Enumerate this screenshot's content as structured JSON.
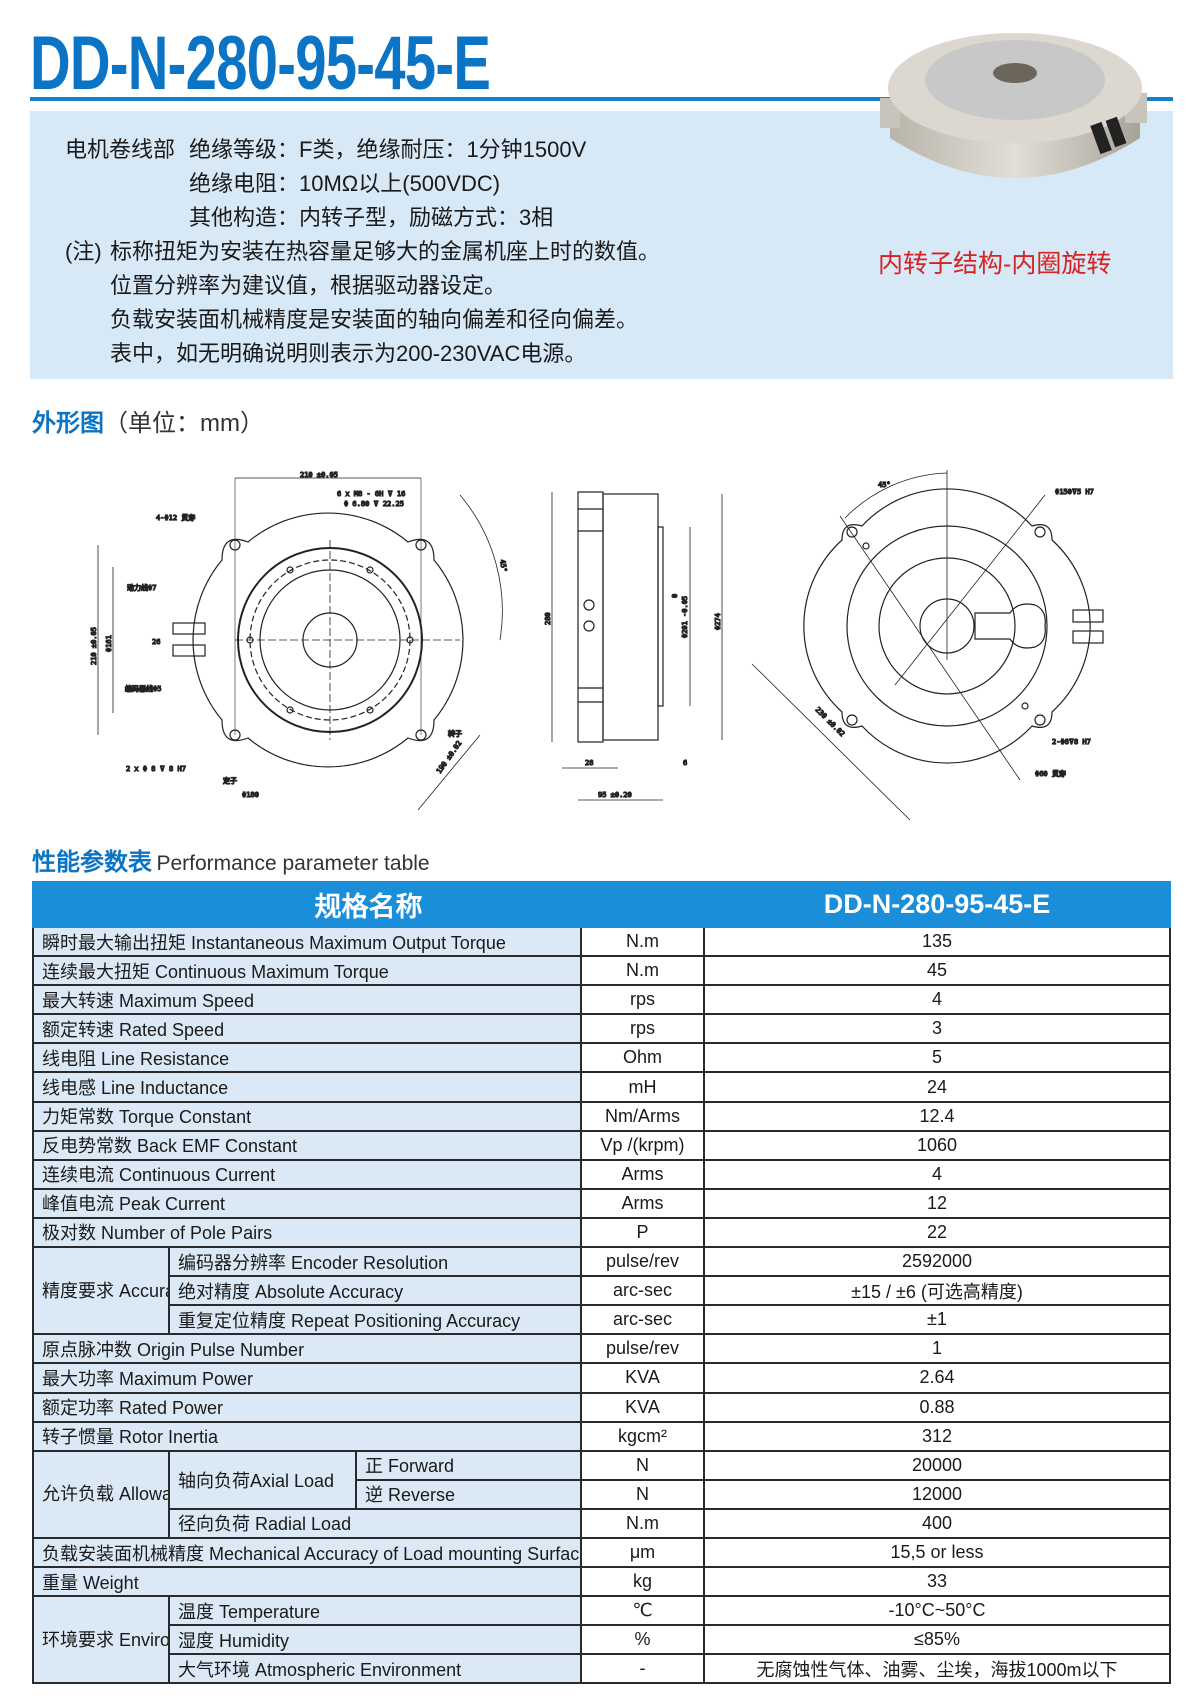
{
  "title": "DD-N-280-95-45-E",
  "info": {
    "winding_label": "电机卷线部",
    "lines": [
      "绝缘等级：F类，绝缘耐压：1分钟1500V",
      "绝缘电阻：10MΩ以上(500VDC)",
      "其他构造：内转子型，励磁方式：3相"
    ],
    "note_label": "(注)",
    "notes": [
      "标称扭矩为安装在热容量足够大的金属机座上时的数值。",
      "位置分辨率为建议值，根据驱动器设定。",
      "负载安装面机械精度是安装面的轴向偏差和径向偏差。",
      "表中，如无明确说明则表示为200-230VAC电源。"
    ],
    "structure_label": "内转子结构-内圈旋转"
  },
  "outline": {
    "heading": "外形图",
    "unit": "（单位：mm）",
    "front_labels": [
      "210 ±0.05",
      "6 x M8 - 6H ⊽ 16",
      "Φ 6.80 ⊽ 22.25",
      "4-Φ12 贯穿",
      "动力线Φ7",
      "26",
      "编码器线Φ5",
      "210 ±0.05",
      "Φ161",
      "2 x Φ 8 ⊽ 8 H7",
      "定子",
      "Φ180",
      "转子",
      "190 ±0.02",
      "45°"
    ],
    "side_labels": [
      "280",
      "0",
      "Φ201 -0.05",
      "Φ274",
      "28",
      "6",
      "95 ±0.20"
    ],
    "back_labels": [
      "45°",
      "Φ150⊽5 H7",
      "2-Φ8⊽8 H7",
      "Φ60 贯穿",
      "230 ±0.02"
    ]
  },
  "performance": {
    "heading_cn": "性能参数表",
    "heading_en": "Performance parameter table",
    "col_name": "规格名称",
    "col_model": "DD-N-280-95-45-E",
    "rows": [
      {
        "name": "瞬时最大输出扭矩  Instantaneous Maximum Output Torque",
        "unit": "N.m",
        "value": "135"
      },
      {
        "name": "连续最大扭矩 Continuous Maximum Torque",
        "unit": "N.m",
        "value": "45"
      },
      {
        "name": "最大转速 Maximum Speed",
        "unit": "rps",
        "value": "4"
      },
      {
        "name": "额定转速 Rated Speed",
        "unit": "rps",
        "value": "3"
      },
      {
        "name": "线电阻 Line Resistance",
        "unit": "Ohm",
        "value": "5"
      },
      {
        "name": "线电感 Line Inductance",
        "unit": "mH",
        "value": "24"
      },
      {
        "name": "力矩常数 Torque Constant",
        "unit": "Nm/Arms",
        "value": "12.4"
      },
      {
        "name": "反电势常数 Back EMF Constant",
        "unit": "Vp /(krpm)",
        "value": "1060"
      },
      {
        "name": "连续电流 Continuous Current",
        "unit": "Arms",
        "value": "4"
      },
      {
        "name": "峰值电流 Peak Current",
        "unit": "Arms",
        "value": "12"
      },
      {
        "name": "极对数 Number of Pole Pairs",
        "unit": "P",
        "value": "22"
      },
      {
        "group": "精度要求\nAccuracy\nRequirement",
        "items": [
          {
            "name": "编码器分辨率 Encoder Resolution",
            "unit": "pulse/rev",
            "value": "2592000"
          },
          {
            "name": "绝对精度 Absolute Accuracy",
            "unit": "arc-sec",
            "value": "±15 / ±6 (可选高精度)"
          },
          {
            "name": "重复定位精度 Repeat Positioning Accuracy",
            "unit": "arc-sec",
            "value": "±1"
          }
        ]
      },
      {
        "name": "原点脉冲数 Origin Pulse Number",
        "unit": "pulse/rev",
        "value": "1"
      },
      {
        "name": "最大功率 Maximum Power",
        "unit": "KVA",
        "value": "2.64"
      },
      {
        "name": "额定功率 Rated Power",
        "unit": "KVA",
        "value": "0.88"
      },
      {
        "name": "转子惯量  Rotor Inertia",
        "unit": "kgcm²",
        "value": "312"
      },
      {
        "group": "允许负载\nAllowable Load",
        "sub_group": "轴向负荷Axial Load",
        "items": [
          {
            "name": "正 Forward",
            "unit": "N",
            "value": "20000"
          },
          {
            "name": "逆 Reverse",
            "unit": "N",
            "value": "12000"
          },
          {
            "name": "径向负荷 Radial Load",
            "unit": "N.m",
            "value": "400"
          }
        ]
      },
      {
        "name": "负载安装面机械精度 Mechanical Accuracy of Load mounting Surface",
        "unit": "μm",
        "value": "15,5 or less"
      },
      {
        "name": "重量 Weight",
        "unit": "kg",
        "value": "33"
      },
      {
        "group": "环境要求\nEnvironmental\nRequirements",
        "items": [
          {
            "name": "温度 Temperature",
            "unit": "℃",
            "value": "-10°C~50°C"
          },
          {
            "name": "湿度 Humidity",
            "unit": "%",
            "value": "≤85%"
          },
          {
            "name": "大气环境 Atmospheric Environment",
            "unit": "-",
            "value": "无腐蚀性气体、油雾、尘埃，海拔1000m以下"
          }
        ]
      }
    ]
  },
  "colors": {
    "brand_blue": "#0b74c4",
    "header_blue": "#1a8ed8",
    "info_bg": "#d7e8f7",
    "accent_red": "#d42323"
  }
}
